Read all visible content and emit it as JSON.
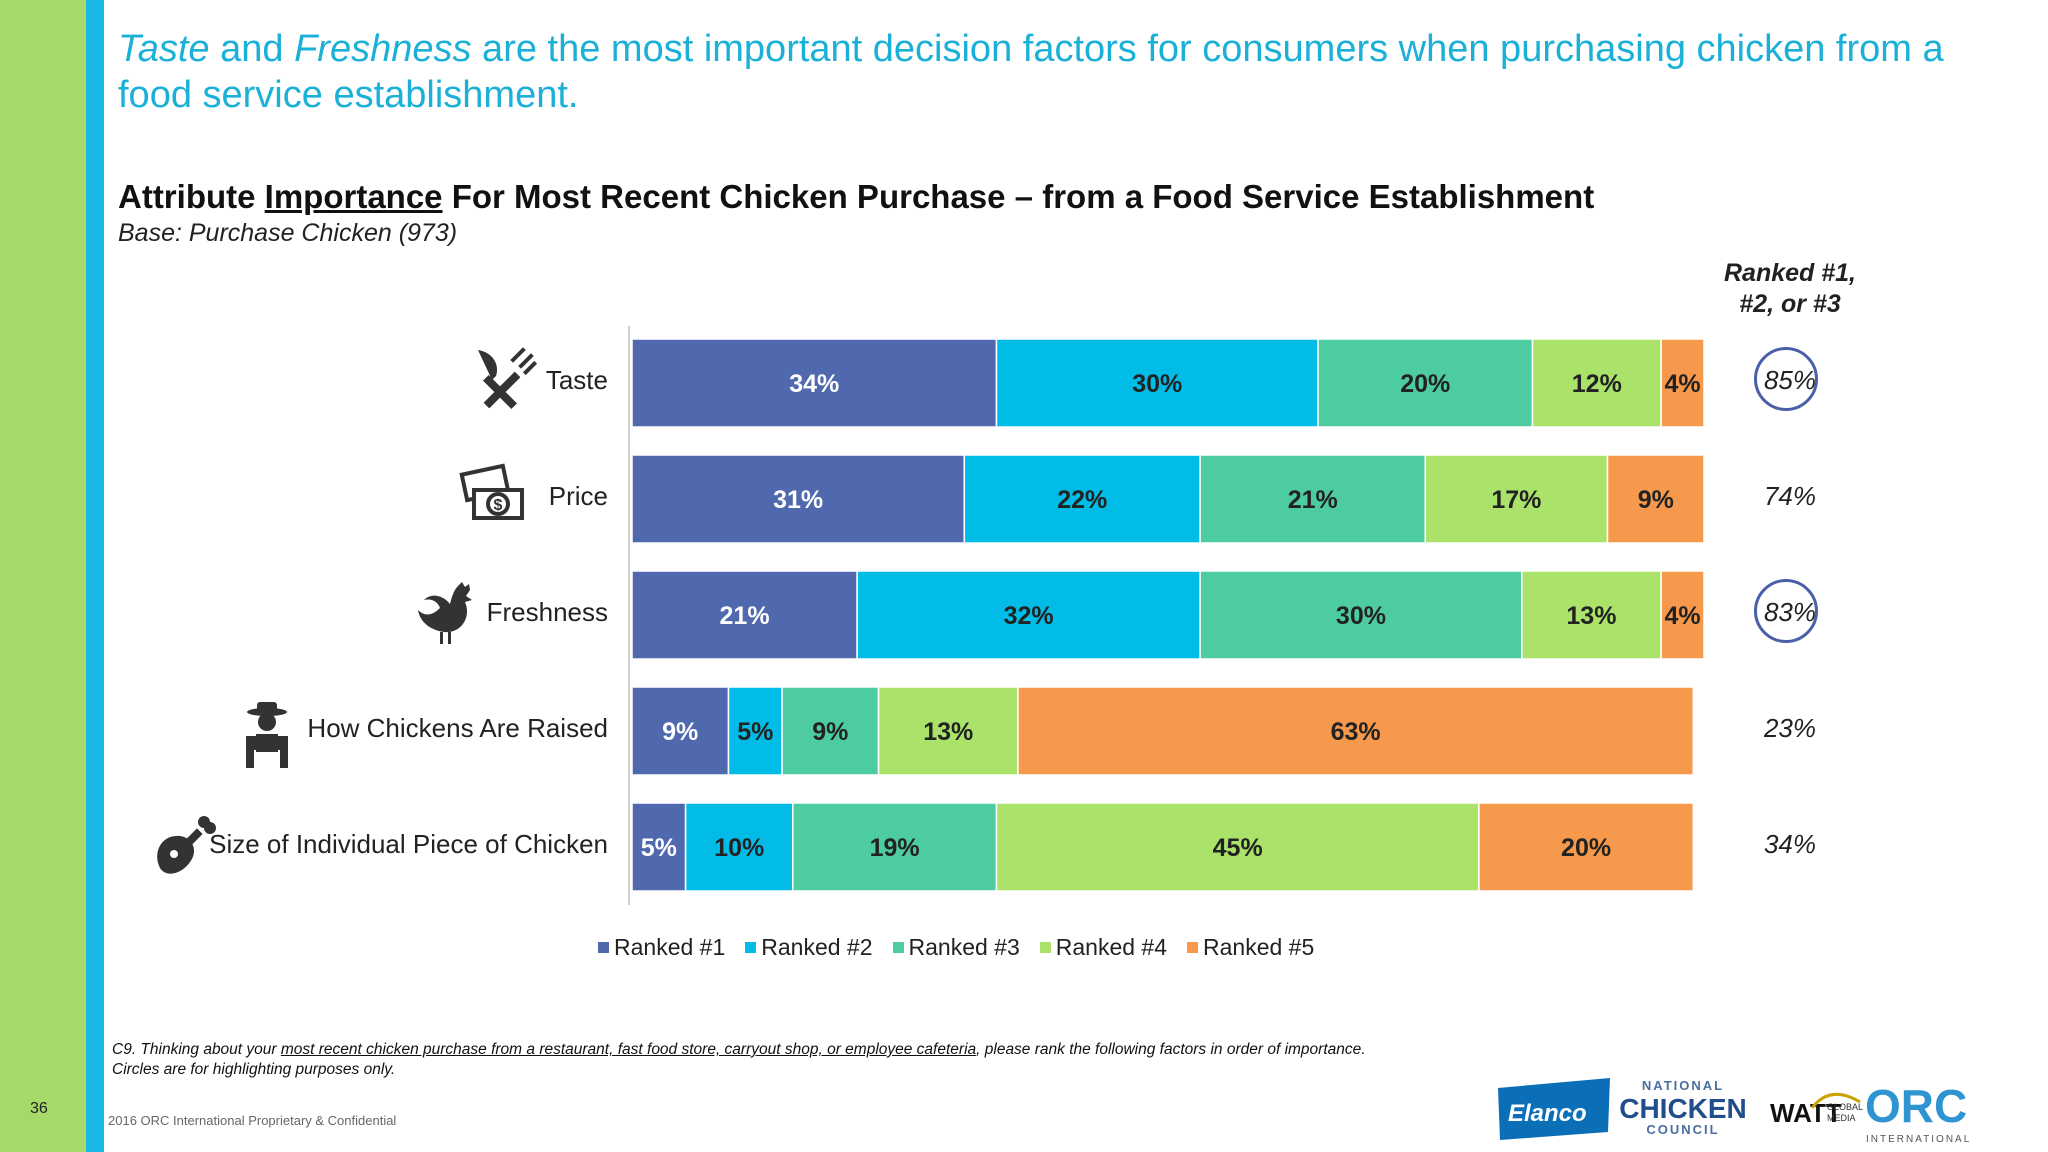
{
  "page_number": "36",
  "headline": {
    "em1": "Taste",
    "mid1": " and ",
    "em2": "Freshness",
    "rest": " are the most important decision factors for consumers when purchasing chicken from a food service establishment."
  },
  "chart_title": {
    "before": "Attribute ",
    "underlined": "Importance",
    "after": " For Most Recent Chicken Purchase – from a Food Service Establishment"
  },
  "base_text": "Base: Purchase Chicken (973)",
  "ranked_header": {
    "line1": "Ranked #1,",
    "line2": "#2, or #3"
  },
  "ranked_totals": [
    "85%",
    "74%",
    "83%",
    "23%",
    "34%"
  ],
  "highlighted": [
    true,
    false,
    true,
    false,
    false
  ],
  "icons": [
    "utensils-icon",
    "money-icon",
    "rooster-icon",
    "farmer-icon",
    "drumstick-icon"
  ],
  "chart_data": {
    "type": "bar",
    "orientation": "horizontal",
    "stacked": true,
    "title": "Attribute Importance For Most Recent Chicken Purchase – from a Food Service Establishment",
    "categories": [
      "Taste",
      "Price",
      "Freshness",
      "How Chickens Are Raised",
      "Size of Individual Piece of Chicken"
    ],
    "series": [
      {
        "name": "Ranked #1",
        "color": "#5068ae",
        "values": [
          34,
          31,
          21,
          9,
          5
        ]
      },
      {
        "name": "Ranked #2",
        "color": "#00bce6",
        "values": [
          30,
          22,
          32,
          5,
          10
        ]
      },
      {
        "name": "Ranked #3",
        "color": "#4dcca0",
        "values": [
          20,
          21,
          30,
          9,
          19
        ]
      },
      {
        "name": "Ranked #4",
        "color": "#aae26a",
        "values": [
          12,
          17,
          13,
          13,
          45
        ]
      },
      {
        "name": "Ranked #5",
        "color": "#f6994c",
        "values": [
          4,
          9,
          4,
          63,
          20
        ]
      }
    ],
    "value_suffix": "%",
    "legend_position": "bottom",
    "grid": false
  },
  "footnote": {
    "prefix": "C9. Thinking about your ",
    "underlined": "most recent chicken purchase from a restaurant, fast food store, carryout shop, or employee cafeteria",
    "suffix": ", please rank the following factors in order of importance.",
    "line2": "Circles are for highlighting purposes only."
  },
  "copyright": "2016 ORC International Proprietary & Confidential",
  "logos": {
    "elanco": "Elanco",
    "ncc_top": "NATIONAL",
    "ncc_mid": "CHICKEN",
    "ncc_bot": "COUNCIL",
    "watt": "WATT",
    "watt_sub1": "GLOBAL",
    "watt_sub2": "MEDIA",
    "orc": "ORC",
    "orc_sub": "INTERNATIONAL"
  }
}
